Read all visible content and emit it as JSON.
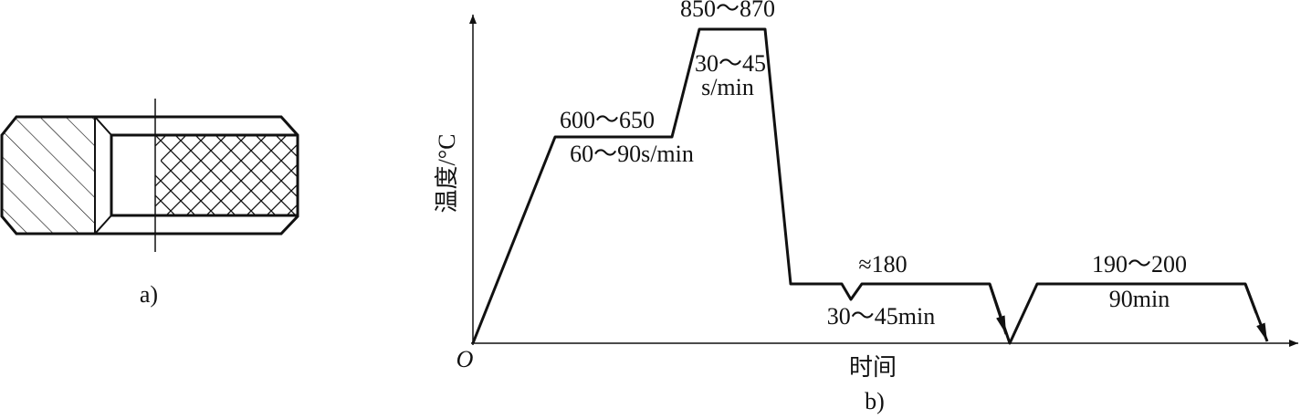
{
  "figure_a": {
    "label": "a)"
  },
  "figure_b": {
    "y_axis_label": "温度/°C",
    "origin": "O",
    "x_axis_label": "时间",
    "label": "b)",
    "annotations": [
      "600～650",
      "60～90s/min",
      "850～870",
      "30～45",
      "s/min",
      "≈180",
      "30～45min",
      "190～200",
      "90min"
    ]
  }
}
